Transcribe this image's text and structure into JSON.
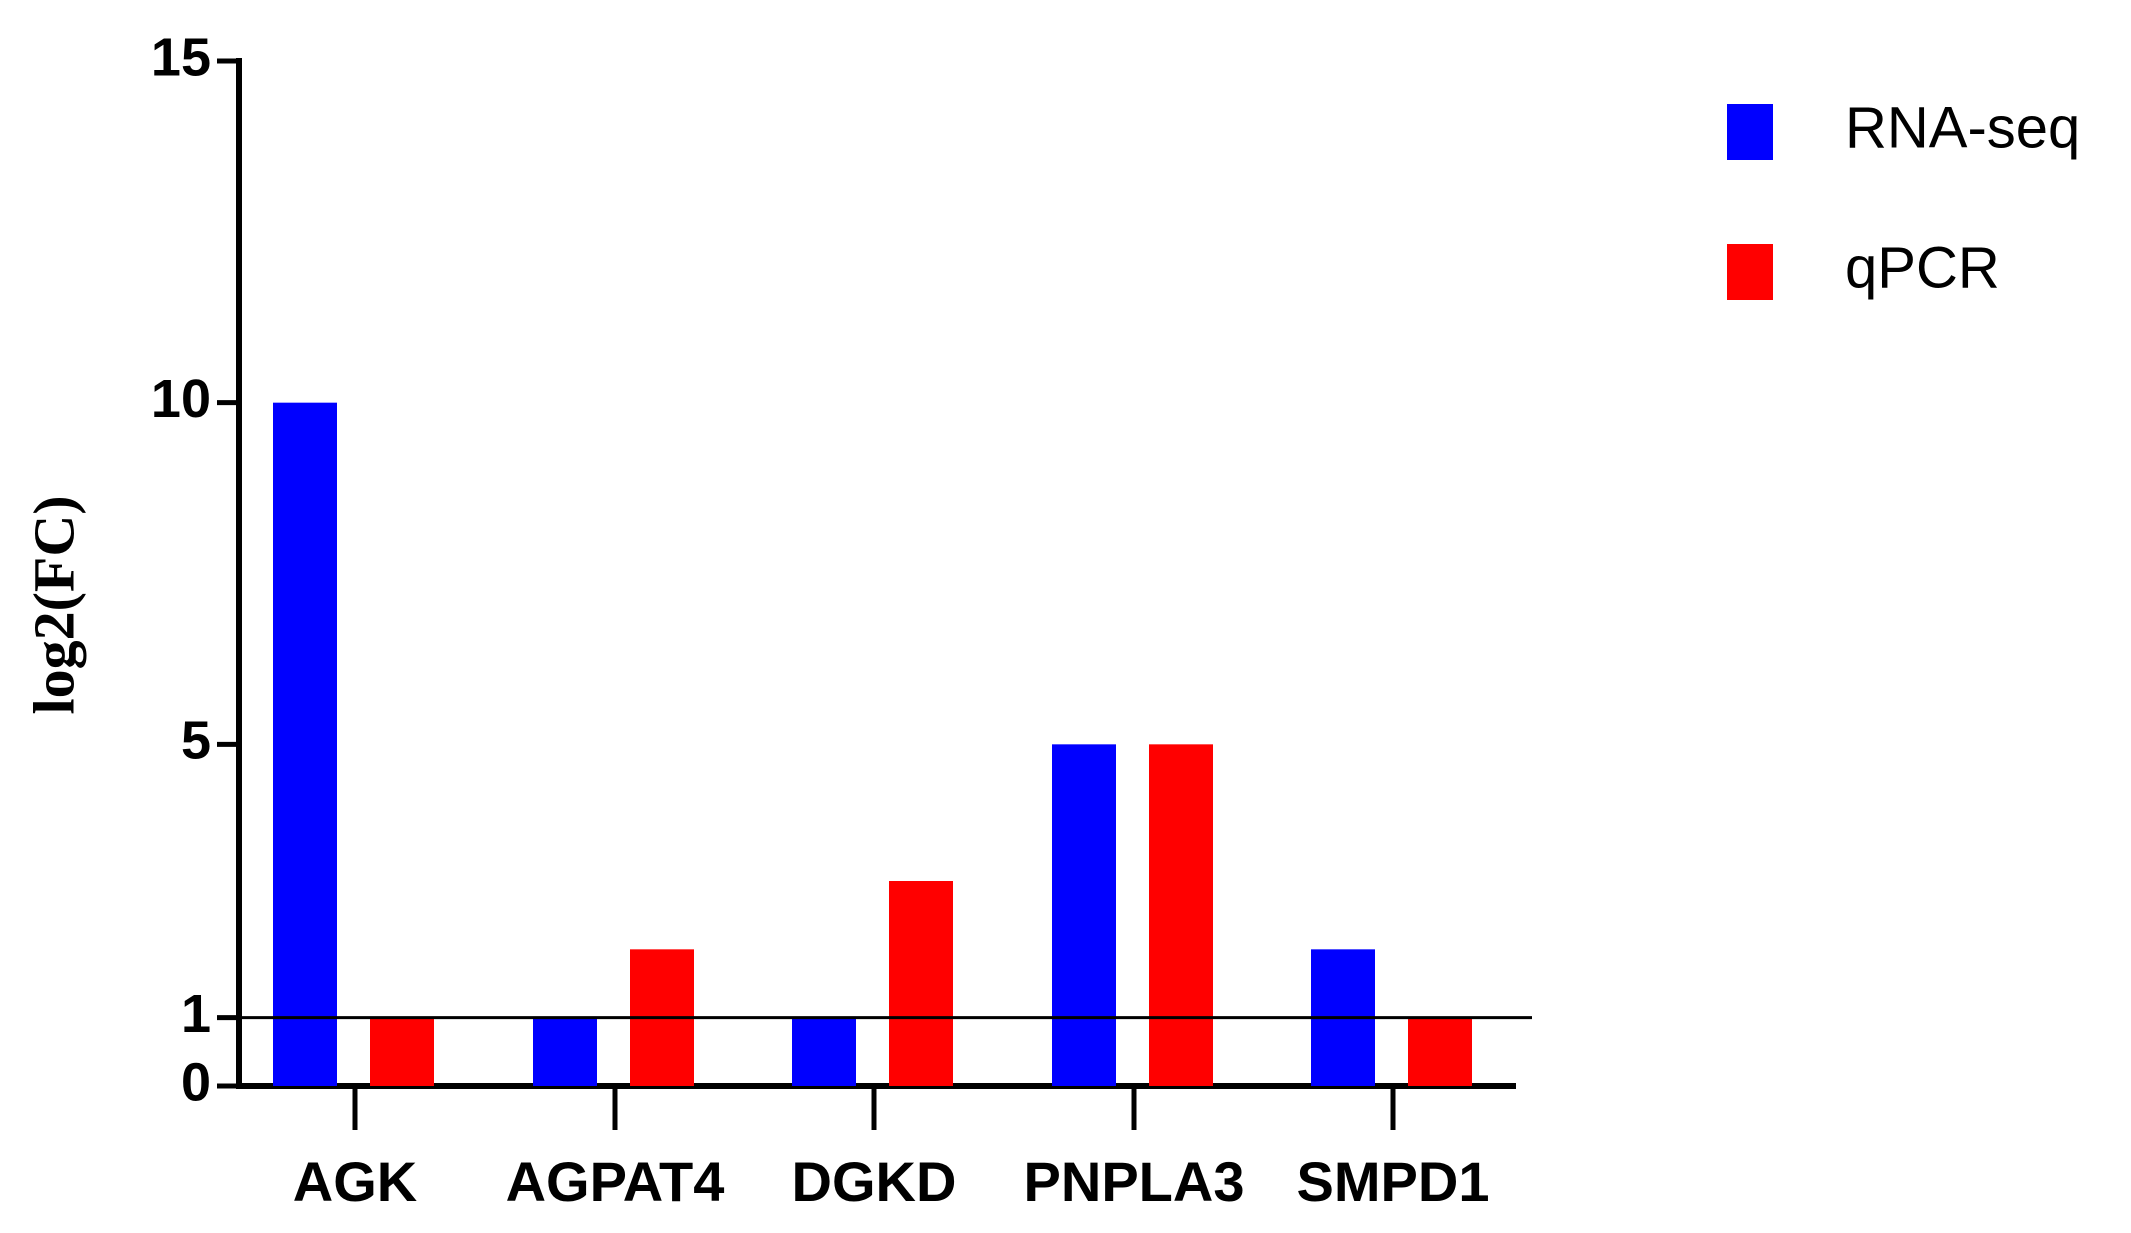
{
  "chart_data": {
    "type": "bar",
    "y_label": "log2(FC)",
    "categories": [
      "AGK",
      "AGPAT4",
      "DGKD",
      "PNPLA3",
      "SMPD1"
    ],
    "series": [
      {
        "name": "RNA-seq",
        "color": "#0000ff",
        "values": [
          10,
          1,
          1,
          5,
          2
        ]
      },
      {
        "name": "qPCR",
        "color": "#ff0000",
        "values": [
          1,
          2,
          3,
          5,
          1
        ]
      }
    ],
    "ylim": [
      0,
      15
    ],
    "yticks": [
      0,
      1,
      5,
      10,
      15
    ],
    "reference_line": 1,
    "grid": false,
    "legend": "top-right"
  }
}
